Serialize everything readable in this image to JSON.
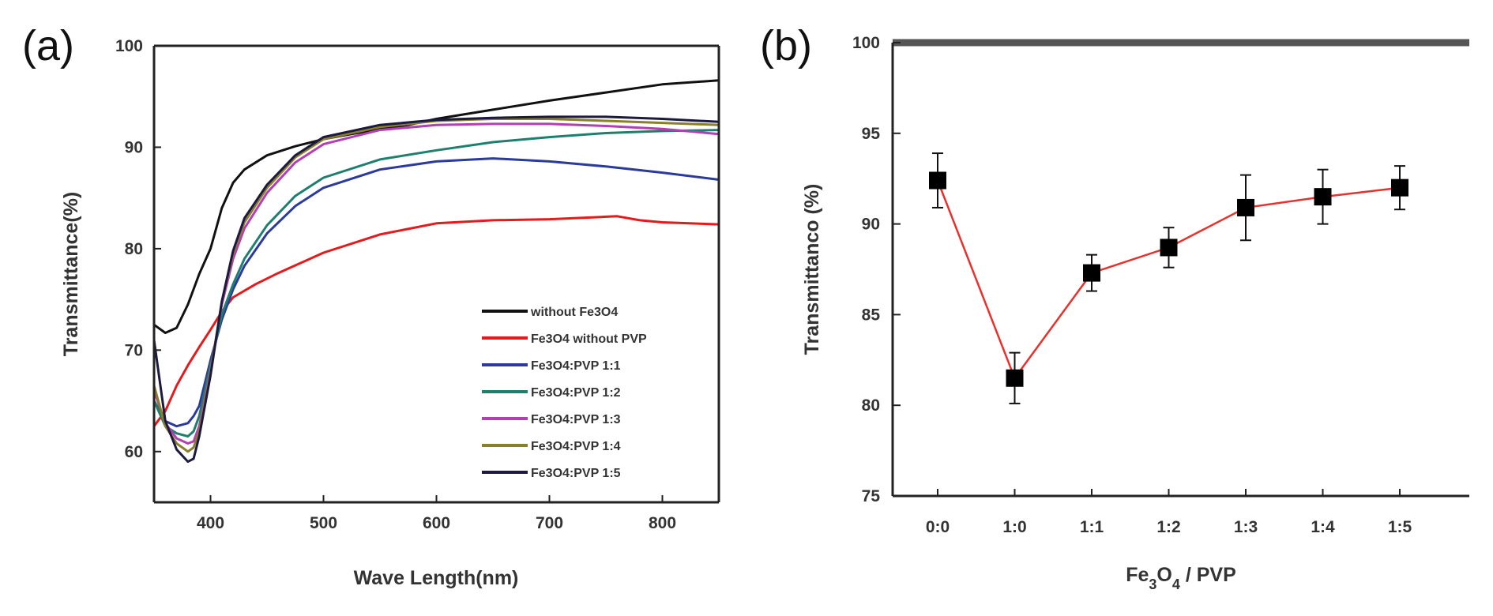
{
  "panel_labels": {
    "a": "(a)",
    "b": "(b)"
  },
  "chart_data": [
    {
      "type": "line",
      "panel": "(a)",
      "xlabel": "Wave Length(nm)",
      "ylabel": "Transmittance(%)",
      "xlim": [
        350,
        850
      ],
      "ylim": [
        55,
        100
      ],
      "xticks": [
        400,
        500,
        600,
        700,
        800
      ],
      "yticks": [
        60,
        70,
        80,
        90,
        100
      ],
      "legend_position": "bottom-right",
      "series": [
        {
          "name": "without Fe3O4",
          "color": "#111111",
          "x": [
            350,
            360,
            370,
            380,
            390,
            400,
            410,
            420,
            430,
            450,
            475,
            500,
            525,
            550,
            575,
            600,
            650,
            700,
            750,
            800,
            850
          ],
          "y": [
            72.5,
            71.7,
            72.2,
            74.5,
            77.5,
            80,
            84,
            86.5,
            87.8,
            89.2,
            90.1,
            90.8,
            91.3,
            91.8,
            92.2,
            92.8,
            93.7,
            94.6,
            95.4,
            96.2,
            96.6
          ]
        },
        {
          "name": "Fe3O4 without PVP",
          "color": "#e41a1c",
          "x": [
            350,
            360,
            370,
            380,
            390,
            400,
            410,
            420,
            440,
            460,
            480,
            500,
            550,
            600,
            650,
            700,
            740,
            760,
            780,
            800,
            850
          ],
          "y": [
            62.5,
            64,
            66.5,
            68.5,
            70.3,
            72,
            73.8,
            75.2,
            76.5,
            77.6,
            78.6,
            79.6,
            81.4,
            82.5,
            82.8,
            82.9,
            83.1,
            83.2,
            82.8,
            82.6,
            82.4
          ]
        },
        {
          "name": "Fe3O4:PVP 1:1",
          "color": "#2b3a9c",
          "x": [
            350,
            360,
            370,
            380,
            385,
            390,
            400,
            410,
            420,
            430,
            450,
            475,
            500,
            550,
            600,
            650,
            700,
            750,
            800,
            850
          ],
          "y": [
            65,
            63,
            62.5,
            62.8,
            63.5,
            64.5,
            69,
            73,
            76,
            78.3,
            81.5,
            84.2,
            86,
            87.8,
            88.6,
            88.9,
            88.6,
            88.1,
            87.5,
            86.8
          ]
        },
        {
          "name": "Fe3O4:PVP 1:2",
          "color": "#1f7f6e",
          "x": [
            350,
            360,
            370,
            380,
            385,
            390,
            400,
            410,
            420,
            430,
            450,
            475,
            500,
            550,
            600,
            650,
            700,
            750,
            800,
            850
          ],
          "y": [
            65,
            62.5,
            61.8,
            61.5,
            62,
            63.5,
            68.5,
            73.5,
            76.5,
            79,
            82.3,
            85.2,
            87,
            88.8,
            89.7,
            90.5,
            91,
            91.4,
            91.6,
            91.7
          ]
        },
        {
          "name": "Fe3O4:PVP 1:3",
          "color": "#b43fb4",
          "x": [
            350,
            360,
            370,
            380,
            385,
            390,
            400,
            410,
            420,
            430,
            450,
            475,
            500,
            550,
            600,
            650,
            700,
            750,
            800,
            850
          ],
          "y": [
            66,
            62.8,
            61.3,
            60.8,
            61,
            62.5,
            68,
            74.5,
            79,
            82,
            85.5,
            88.5,
            90.3,
            91.7,
            92.2,
            92.3,
            92.3,
            92.1,
            91.8,
            91.3
          ]
        },
        {
          "name": "Fe3O4:PVP 1:4",
          "color": "#8a7f2a",
          "x": [
            350,
            360,
            370,
            380,
            385,
            390,
            400,
            410,
            420,
            430,
            450,
            475,
            500,
            550,
            600,
            650,
            700,
            750,
            800,
            850
          ],
          "y": [
            66.5,
            62.5,
            60.8,
            60,
            60.4,
            62,
            67.8,
            74.8,
            79.5,
            82.6,
            86,
            89,
            90.8,
            92,
            92.6,
            92.8,
            92.8,
            92.6,
            92.4,
            92.2
          ]
        },
        {
          "name": "Fe3O4:PVP 1:5",
          "color": "#1c1a40",
          "x": [
            350,
            360,
            370,
            380,
            385,
            390,
            400,
            410,
            420,
            430,
            450,
            475,
            500,
            550,
            600,
            650,
            700,
            750,
            800,
            850
          ],
          "y": [
            71,
            63,
            60.2,
            59,
            59.3,
            61.5,
            67.5,
            74.8,
            79.8,
            83,
            86.3,
            89.2,
            91,
            92.2,
            92.7,
            92.9,
            93,
            93,
            92.8,
            92.5
          ]
        }
      ]
    },
    {
      "type": "line",
      "panel": "(b)",
      "xlabel_main": "Fe",
      "xlabel_sub1": "3",
      "xlabel_mid": "O",
      "xlabel_sub2": "4",
      "xlabel_end": " / PVP",
      "ylabel": "Transmittanco (%)",
      "ylim": [
        75,
        100
      ],
      "yticks": [
        75,
        80,
        85,
        90,
        95,
        100
      ],
      "categories": [
        "0:0",
        "1:0",
        "1:1",
        "1:2",
        "1:3",
        "1:4",
        "1:5"
      ],
      "values": [
        92.4,
        81.5,
        87.3,
        88.7,
        90.9,
        91.5,
        92.0
      ],
      "errors": [
        1.5,
        1.4,
        1.0,
        1.1,
        1.8,
        1.5,
        1.2
      ],
      "line_color": "#e8312c",
      "marker_color": "#000000"
    }
  ]
}
